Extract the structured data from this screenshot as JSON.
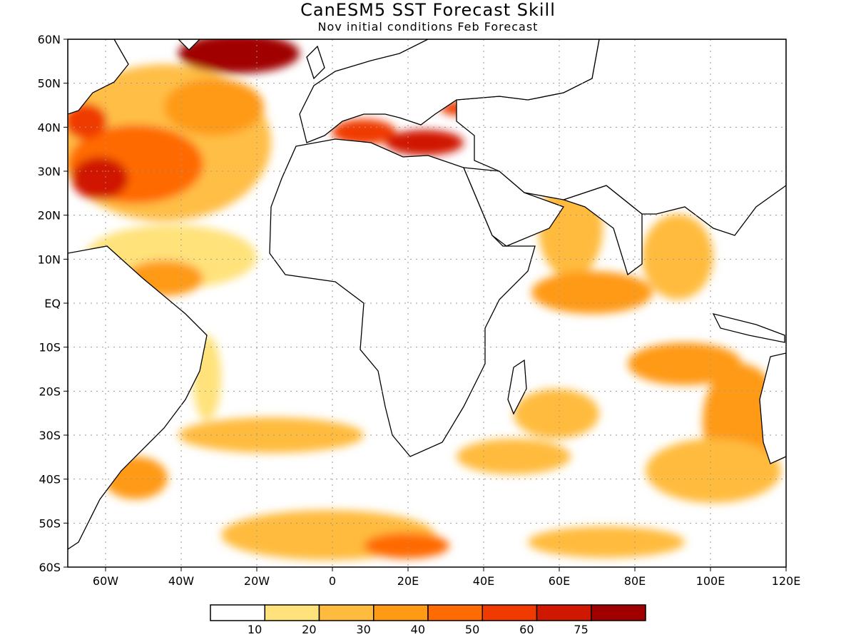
{
  "title": "CanESM5 SST Forecast Skill",
  "subtitle": "Nov initial conditions  Feb Forecast",
  "map": {
    "lon_range": [
      -70,
      120
    ],
    "lat_range": [
      -60,
      60
    ],
    "grid": true,
    "lat_labels": [
      "60N",
      "50N",
      "40N",
      "30N",
      "20N",
      "10N",
      "EQ",
      "10S",
      "20S",
      "30S",
      "40S",
      "50S",
      "60S"
    ],
    "lon_labels": [
      "60W",
      "40W",
      "20W",
      "0",
      "20E",
      "40E",
      "60E",
      "80E",
      "100E",
      "120E"
    ]
  },
  "colorbar": {
    "colors": [
      "#ffffff",
      "#ffe27a",
      "#ffbb3d",
      "#ff9a14",
      "#ff6b00",
      "#f03a00",
      "#d01800",
      "#a00000"
    ],
    "labels": [
      "10",
      "20",
      "30",
      "40",
      "50",
      "60",
      "75"
    ]
  }
}
